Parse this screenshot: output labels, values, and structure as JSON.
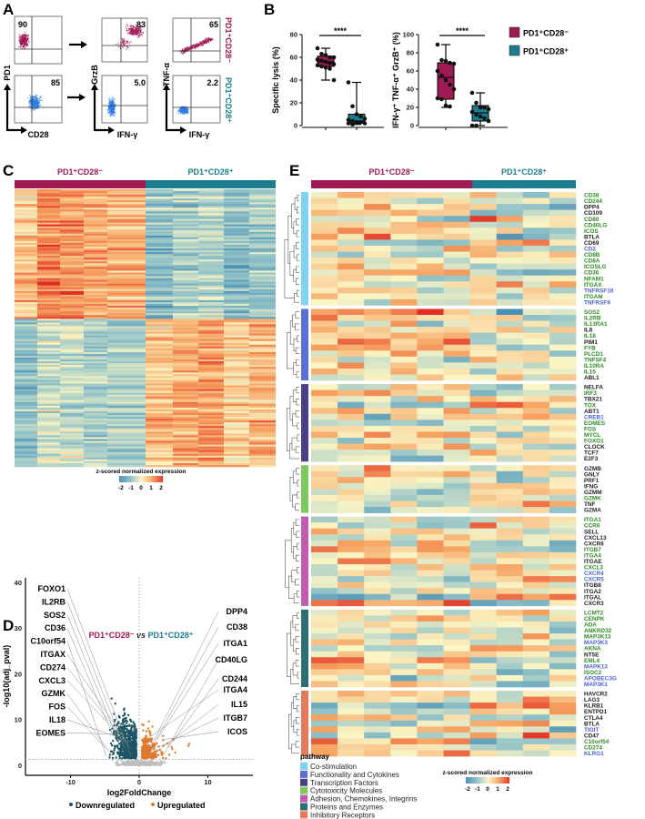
{
  "panel_labels": [
    "A",
    "B",
    "C",
    "D",
    "E"
  ],
  "groups": {
    "neg": "PD1⁺CD28⁻",
    "pos": "PD1⁺CD28⁺"
  },
  "colors": {
    "neg": "#a01a55",
    "pos": "#1b7d8d",
    "down": "#1d5566",
    "up": "#e07a2e",
    "ns": "#bdbdbd",
    "gene_green": "#2e8b22",
    "gene_blue": "#4a5fd0",
    "gene_black": "#222222",
    "heat_low": "#4a90b5",
    "heat_mid": "#fbf5c4",
    "heat_high": "#e12d24"
  },
  "panel_a": {
    "y_labels": [
      "PD1",
      "GrzB",
      "TNF-α"
    ],
    "x_labels": [
      "CD28",
      "IFN-γ",
      "IFN-γ"
    ],
    "percent_neg": [
      "90",
      "83",
      "65"
    ],
    "percent_pos": [
      "85",
      "5.0",
      "2.2"
    ]
  },
  "chart_data": [
    {
      "type": "box",
      "ylabel": "Specific lysis (%)",
      "ylim": [
        0,
        80
      ],
      "yticks": [
        0,
        20,
        40,
        60,
        80
      ],
      "significance": "****",
      "series": [
        {
          "name": "PD1⁺CD28⁻",
          "whisker": [
            40,
            68
          ],
          "q1": 52,
          "median": 56,
          "q3": 61,
          "points": [
            68,
            63,
            62,
            60,
            60,
            58,
            57,
            56,
            55,
            54,
            53,
            52,
            51,
            50,
            40
          ]
        },
        {
          "name": "PD1⁺CD28⁺",
          "whisker": [
            1,
            38
          ],
          "q1": 2,
          "median": 4,
          "q3": 10,
          "points": [
            38,
            17,
            10,
            8,
            6,
            5,
            4,
            3,
            3,
            2,
            2,
            1
          ]
        }
      ]
    },
    {
      "type": "box",
      "ylabel": "IFN-γ⁺ TNF-α⁺ GrzB⁺ (%)",
      "ylim": [
        0,
        100
      ],
      "yticks": [
        0,
        20,
        40,
        60,
        80,
        100
      ],
      "significance": "****",
      "series": [
        {
          "name": "PD1⁺CD28⁻",
          "whisker": [
            20,
            89
          ],
          "q1": 29,
          "median": 53,
          "q3": 69,
          "points": [
            89,
            72,
            71,
            69,
            68,
            60,
            55,
            50,
            45,
            40,
            30,
            29,
            22,
            21
          ]
        },
        {
          "name": "PD1⁺CD28⁺",
          "whisker": [
            0,
            36
          ],
          "q1": 5,
          "median": 14,
          "q3": 22,
          "points": [
            36,
            25,
            20,
            20,
            18,
            15,
            12,
            10,
            8,
            5,
            0,
            0
          ]
        }
      ],
      "legend": "top-right"
    },
    {
      "type": "heatmap",
      "columns": [
        "PD1⁺CD28⁻",
        "PD1⁺CD28⁺"
      ],
      "colorbar": {
        "title": "z-scored normalized expression",
        "ticks": [
          "-2",
          "-1",
          "0",
          "1",
          "2"
        ]
      }
    },
    {
      "type": "scatter",
      "title_left": "PD1⁺CD28⁻",
      "title_vs": "vs",
      "title_right": "PD1⁺CD28⁺",
      "xlabel": "log2FoldChange",
      "ylabel": "-log10(adj_pval)",
      "xticks": [
        "-10",
        "0",
        "10"
      ],
      "yticks": [
        "0",
        "10",
        "20",
        "30",
        "40"
      ],
      "xlim": [
        -16,
        16
      ],
      "ylim": [
        -2,
        42
      ],
      "legend": [
        {
          "name": "Downregulated",
          "color": "#1d5566"
        },
        {
          "name": "Upregulated",
          "color": "#e07a2e"
        }
      ],
      "labels_down": [
        "FOXO1",
        "IL2RB",
        "SOS2",
        "CD36",
        "C10orf54",
        "ITGAX",
        "CD274",
        "CXCL3",
        "GZMK",
        "FOS",
        "IL18",
        "EOMES"
      ],
      "labels_up": [
        "DPP4",
        "CD38",
        "ITGA1",
        "CD40LG",
        "CD244",
        "ITGA4",
        "IL15",
        "ITGB7",
        "ICOS"
      ]
    },
    {
      "type": "heatmap",
      "columns": [
        "PD1⁺CD28⁻",
        "PD1⁺CD28⁺"
      ],
      "legend_title": "pathway",
      "colorbar": {
        "title": "z-scored normalized expression",
        "ticks": [
          "-2",
          "-1",
          "0",
          "1",
          "2"
        ]
      },
      "pathways": [
        {
          "name": "Co-stimulation",
          "color": "#7fd3ee",
          "genes": [
            {
              "n": "CD38",
              "c": "g"
            },
            {
              "n": "CD244",
              "c": "g"
            },
            {
              "n": "DPP4",
              "c": "k"
            },
            {
              "n": "CD109",
              "c": "k"
            },
            {
              "n": "CD80",
              "c": "g"
            },
            {
              "n": "CD40LG",
              "c": "g"
            },
            {
              "n": "ICOS",
              "c": "g"
            },
            {
              "n": "BTLA",
              "c": "k"
            },
            {
              "n": "CD69",
              "c": "k"
            },
            {
              "n": "CD2",
              "c": "b"
            },
            {
              "n": "CD8B",
              "c": "g"
            },
            {
              "n": "CD8A",
              "c": "g"
            },
            {
              "n": "ICOSLG",
              "c": "g"
            },
            {
              "n": "CD36",
              "c": "g"
            },
            {
              "n": "NFAM1",
              "c": "g"
            },
            {
              "n": "ITGAX",
              "c": "g"
            },
            {
              "n": "TNFRSF18",
              "c": "b"
            },
            {
              "n": "ITGAM",
              "c": "g"
            },
            {
              "n": "TNFRSF9",
              "c": "b"
            }
          ]
        },
        {
          "name": "Functionality and Cytokines",
          "color": "#5b6fd6",
          "genes": [
            {
              "n": "SOS2",
              "c": "g"
            },
            {
              "n": "IL2RB",
              "c": "g"
            },
            {
              "n": "IL13RA1",
              "c": "g"
            },
            {
              "n": "IL8",
              "c": "k"
            },
            {
              "n": "IL18",
              "c": "g"
            },
            {
              "n": "PIM1",
              "c": "k"
            },
            {
              "n": "FYB",
              "c": "g"
            },
            {
              "n": "PLCD1",
              "c": "g"
            },
            {
              "n": "TNFSF4",
              "c": "g"
            },
            {
              "n": "IL10RA",
              "c": "g"
            },
            {
              "n": "IL15",
              "c": "g"
            },
            {
              "n": "ABL1",
              "c": "k"
            }
          ]
        },
        {
          "name": "Transcription Factors",
          "color": "#4b3f88",
          "genes": [
            {
              "n": "NELFA",
              "c": "k"
            },
            {
              "n": "IRF3",
              "c": "g"
            },
            {
              "n": "TBX21",
              "c": "k"
            },
            {
              "n": "TOX",
              "c": "g"
            },
            {
              "n": "ABT1",
              "c": "k"
            },
            {
              "n": "CREB1",
              "c": "b"
            },
            {
              "n": "EOMES",
              "c": "g"
            },
            {
              "n": "FOS",
              "c": "g"
            },
            {
              "n": "MYCL",
              "c": "g"
            },
            {
              "n": "FOXO1",
              "c": "g"
            },
            {
              "n": "CLOCK",
              "c": "k"
            },
            {
              "n": "TCF7",
              "c": "k"
            },
            {
              "n": "E2F3",
              "c": "k"
            }
          ]
        },
        {
          "name": "Cytotoxicity Molecules",
          "color": "#7ccb5a",
          "genes": [
            {
              "n": "GZMB",
              "c": "k"
            },
            {
              "n": "GNLY",
              "c": "k"
            },
            {
              "n": "PRF1",
              "c": "k"
            },
            {
              "n": "IFNG",
              "c": "k"
            },
            {
              "n": "GZMM",
              "c": "k"
            },
            {
              "n": "GZMK",
              "c": "g"
            },
            {
              "n": "TNF",
              "c": "k"
            },
            {
              "n": "GZMA",
              "c": "k"
            }
          ]
        },
        {
          "name": "Adhesion, Chemokines, Integrins",
          "color": "#c45bb3",
          "genes": [
            {
              "n": "ITGA1",
              "c": "g"
            },
            {
              "n": "CCR6",
              "c": "g"
            },
            {
              "n": "SELL",
              "c": "k"
            },
            {
              "n": "CXCL13",
              "c": "k"
            },
            {
              "n": "CXCR6",
              "c": "k"
            },
            {
              "n": "ITGB7",
              "c": "g"
            },
            {
              "n": "ITGA4",
              "c": "g"
            },
            {
              "n": "ITGAE",
              "c": "k"
            },
            {
              "n": "CXCL3",
              "c": "g"
            },
            {
              "n": "CXCR4",
              "c": "b"
            },
            {
              "n": "CXCR5",
              "c": "b"
            },
            {
              "n": "ITGB8",
              "c": "k"
            },
            {
              "n": "ITGA2",
              "c": "k"
            },
            {
              "n": "ITGAL",
              "c": "k"
            },
            {
              "n": "CXCR3",
              "c": "k"
            }
          ]
        },
        {
          "name": "Proteins and Enzymes",
          "color": "#2e6e6e",
          "genes": [
            {
              "n": "LCMT2",
              "c": "g"
            },
            {
              "n": "CENPK",
              "c": "g"
            },
            {
              "n": "ADA",
              "c": "g"
            },
            {
              "n": "ANKRD32",
              "c": "g"
            },
            {
              "n": "MAP3K13",
              "c": "g"
            },
            {
              "n": "MAP3K3",
              "c": "b"
            },
            {
              "n": "AKNA",
              "c": "g"
            },
            {
              "n": "NT5E",
              "c": "k"
            },
            {
              "n": "EML4",
              "c": "g"
            },
            {
              "n": "MAPK13",
              "c": "b"
            },
            {
              "n": "ISOC2",
              "c": "g"
            },
            {
              "n": "APOBEC3G",
              "c": "b"
            },
            {
              "n": "MAP3K1",
              "c": "b"
            }
          ]
        },
        {
          "name": "Inhibitory Receptors",
          "color": "#e87a5a",
          "genes": [
            {
              "n": "HAVCR2",
              "c": "k"
            },
            {
              "n": "LAG3",
              "c": "k"
            },
            {
              "n": "KLRB1",
              "c": "k"
            },
            {
              "n": "ENTPD1",
              "c": "k"
            },
            {
              "n": "CTLA4",
              "c": "k"
            },
            {
              "n": "BTLA",
              "c": "k"
            },
            {
              "n": "TIGIT",
              "c": "b"
            },
            {
              "n": "CD47",
              "c": "k"
            },
            {
              "n": "C10orf54",
              "c": "g"
            },
            {
              "n": "CD274",
              "c": "g"
            },
            {
              "n": "KLRG1",
              "c": "b"
            }
          ]
        }
      ]
    }
  ]
}
